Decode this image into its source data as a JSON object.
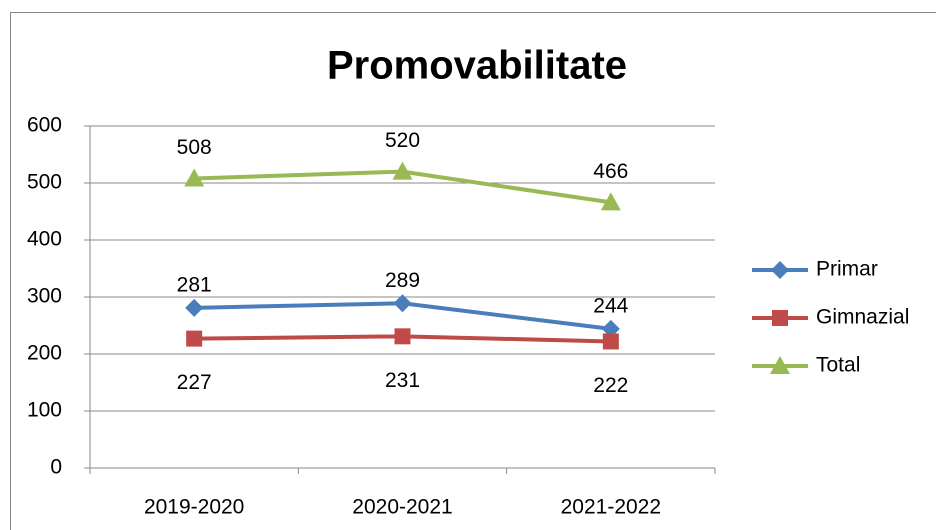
{
  "chart_data": {
    "type": "line",
    "title": "Promovabilitate",
    "categories": [
      "2019-2020",
      "2020-2021",
      "2021-2022"
    ],
    "series": [
      {
        "name": "Primar",
        "color": "#4a7ebb",
        "marker": "diamond",
        "values": [
          281,
          289,
          244
        ]
      },
      {
        "name": "Gimnazial",
        "color": "#be4b48",
        "marker": "square",
        "values": [
          227,
          231,
          222
        ]
      },
      {
        "name": "Total",
        "color": "#98b954",
        "marker": "triangle",
        "values": [
          508,
          520,
          466
        ]
      }
    ],
    "ylim": [
      0,
      600
    ],
    "yticks": [
      0,
      100,
      200,
      300,
      400,
      500,
      600
    ],
    "grid": true,
    "legend": "right"
  }
}
